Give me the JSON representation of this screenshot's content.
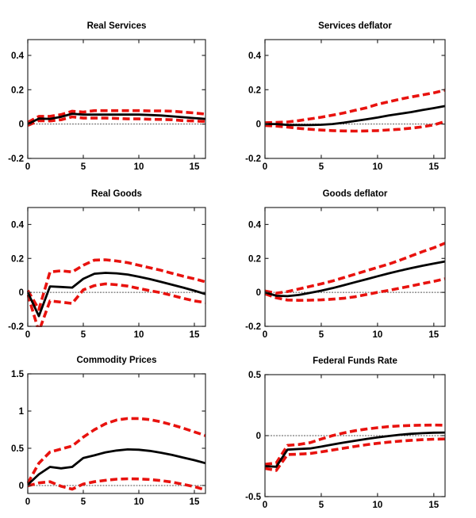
{
  "figure_caption": "",
  "colors": {
    "response_line": "#000000",
    "confidence_band": "#e8120e",
    "zero_line": "#555555",
    "axis_box": "#2b2b2b",
    "background": "#ffffff"
  },
  "chart_data": [
    {
      "type": "line",
      "title": "Real Services",
      "x": [
        0,
        1,
        2,
        3,
        4,
        5,
        6,
        7,
        8,
        9,
        10,
        11,
        12,
        13,
        14,
        15,
        16
      ],
      "xlim": [
        0,
        16
      ],
      "ylim": [
        -0.2,
        0.492
      ],
      "xticks": [
        0,
        5,
        10,
        15
      ],
      "xtick_labels": [
        "0",
        "5",
        "10",
        "15"
      ],
      "yticks": [
        -0.2,
        0,
        0.2,
        0.4
      ],
      "ytick_labels": [
        "-0.2",
        "0",
        "0.2",
        "0.4"
      ],
      "grid": false,
      "legend": "none",
      "series": [
        {
          "name": "upper_band",
          "style": "dashed",
          "values": [
            0.01,
            0.045,
            0.045,
            0.055,
            0.075,
            0.07,
            0.078,
            0.078,
            0.078,
            0.078,
            0.078,
            0.077,
            0.077,
            0.075,
            0.07,
            0.065,
            0.058
          ]
        },
        {
          "name": "lower_band",
          "style": "dashed",
          "values": [
            -0.008,
            0.02,
            0.018,
            0.025,
            0.042,
            0.035,
            0.035,
            0.035,
            0.033,
            0.03,
            0.03,
            0.028,
            0.027,
            0.025,
            0.02,
            0.018,
            0.015
          ]
        },
        {
          "name": "response",
          "style": "solid",
          "values": [
            0,
            0.032,
            0.03,
            0.042,
            0.06,
            0.055,
            0.055,
            0.055,
            0.055,
            0.055,
            0.055,
            0.053,
            0.05,
            0.045,
            0.04,
            0.035,
            0.03
          ]
        }
      ]
    },
    {
      "type": "line",
      "title": "Services deflator",
      "x": [
        0,
        1,
        2,
        3,
        4,
        5,
        6,
        7,
        8,
        9,
        10,
        11,
        12,
        13,
        14,
        15,
        16
      ],
      "xlim": [
        0,
        16
      ],
      "ylim": [
        -0.2,
        0.492
      ],
      "xticks": [
        0,
        5,
        10,
        15
      ],
      "xtick_labels": [
        "0",
        "5",
        "10",
        "15"
      ],
      "yticks": [
        -0.2,
        0,
        0.2,
        0.4
      ],
      "ytick_labels": [
        "-0.2",
        "0",
        "0.2",
        "0.4"
      ],
      "grid": false,
      "legend": "none",
      "series": [
        {
          "name": "upper_band",
          "style": "dashed",
          "values": [
            0.008,
            0.01,
            0.012,
            0.02,
            0.03,
            0.04,
            0.052,
            0.065,
            0.08,
            0.095,
            0.115,
            0.13,
            0.145,
            0.158,
            0.17,
            0.182,
            0.197
          ]
        },
        {
          "name": "lower_band",
          "style": "dashed",
          "values": [
            -0.008,
            -0.012,
            -0.018,
            -0.025,
            -0.03,
            -0.035,
            -0.038,
            -0.04,
            -0.041,
            -0.04,
            -0.038,
            -0.034,
            -0.03,
            -0.024,
            -0.016,
            -0.005,
            0.015
          ]
        },
        {
          "name": "response",
          "style": "solid",
          "values": [
            0,
            0,
            -0.005,
            -0.006,
            -0.006,
            -0.004,
            0,
            0.008,
            0.018,
            0.028,
            0.038,
            0.05,
            0.06,
            0.07,
            0.082,
            0.093,
            0.105
          ]
        }
      ]
    },
    {
      "type": "line",
      "title": "Real Goods",
      "x": [
        0,
        1,
        2,
        3,
        4,
        5,
        6,
        7,
        8,
        9,
        10,
        11,
        12,
        13,
        14,
        15,
        16
      ],
      "xlim": [
        0,
        16
      ],
      "ylim": [
        -0.2,
        0.5
      ],
      "xticks": [
        0,
        5,
        10,
        15
      ],
      "xtick_labels": [
        "0",
        "5",
        "10",
        "15"
      ],
      "yticks": [
        -0.2,
        0,
        0.2,
        0.4
      ],
      "ytick_labels": [
        "-0.2",
        "0",
        "0.2",
        "0.4"
      ],
      "grid": false,
      "legend": "none",
      "series": [
        {
          "name": "upper_band",
          "style": "dashed",
          "values": [
            0.012,
            -0.1,
            0.12,
            0.127,
            0.12,
            0.16,
            0.19,
            0.192,
            0.185,
            0.175,
            0.16,
            0.145,
            0.13,
            0.112,
            0.095,
            0.08,
            0.062
          ]
        },
        {
          "name": "lower_band",
          "style": "dashed",
          "values": [
            -0.012,
            -0.23,
            -0.05,
            -0.057,
            -0.065,
            0.015,
            0.04,
            0.05,
            0.045,
            0.037,
            0.023,
            0.01,
            -0.002,
            -0.018,
            -0.035,
            -0.05,
            -0.06
          ]
        },
        {
          "name": "response",
          "style": "solid",
          "values": [
            0,
            -0.14,
            0.035,
            0.032,
            0.028,
            0.08,
            0.11,
            0.115,
            0.112,
            0.105,
            0.092,
            0.078,
            0.062,
            0.045,
            0.028,
            0.01,
            -0.01
          ]
        }
      ]
    },
    {
      "type": "line",
      "title": "Goods deflator",
      "x": [
        0,
        1,
        2,
        3,
        4,
        5,
        6,
        7,
        8,
        9,
        10,
        11,
        12,
        13,
        14,
        15,
        16
      ],
      "xlim": [
        0,
        16
      ],
      "ylim": [
        -0.2,
        0.5
      ],
      "xticks": [
        0,
        5,
        10,
        15
      ],
      "xtick_labels": [
        "0",
        "5",
        "10",
        "15"
      ],
      "yticks": [
        -0.2,
        0,
        0.2,
        0.4
      ],
      "ytick_labels": [
        "-0.2",
        "0",
        "0.2",
        "0.4"
      ],
      "grid": false,
      "legend": "none",
      "series": [
        {
          "name": "upper_band",
          "style": "dashed",
          "values": [
            0.008,
            -0.005,
            0.005,
            0.02,
            0.035,
            0.05,
            0.067,
            0.087,
            0.107,
            0.127,
            0.147,
            0.167,
            0.19,
            0.215,
            0.24,
            0.263,
            0.29
          ]
        },
        {
          "name": "lower_band",
          "style": "dashed",
          "values": [
            -0.008,
            -0.032,
            -0.045,
            -0.047,
            -0.046,
            -0.044,
            -0.04,
            -0.035,
            -0.026,
            -0.013,
            0,
            0.012,
            0.025,
            0.038,
            0.052,
            0.065,
            0.08
          ]
        },
        {
          "name": "response",
          "style": "solid",
          "values": [
            0,
            -0.02,
            -0.022,
            -0.015,
            -0.003,
            0.01,
            0.025,
            0.042,
            0.06,
            0.077,
            0.095,
            0.112,
            0.128,
            0.143,
            0.157,
            0.17,
            0.182
          ]
        }
      ]
    },
    {
      "type": "line",
      "title": "Commodity Prices",
      "x": [
        0,
        1,
        2,
        3,
        4,
        5,
        6,
        7,
        8,
        9,
        10,
        11,
        12,
        13,
        14,
        15,
        16
      ],
      "xlim": [
        0,
        16
      ],
      "ylim": [
        -0.107,
        1.5
      ],
      "xticks": [
        0,
        5,
        10,
        15
      ],
      "xtick_labels": [
        "0",
        "5",
        "10",
        "15"
      ],
      "yticks": [
        0,
        0.5,
        1,
        1.5
      ],
      "ytick_labels": [
        "0",
        "0.5",
        "1",
        "1.5"
      ],
      "grid": false,
      "legend": "none",
      "series": [
        {
          "name": "upper_band",
          "style": "dashed",
          "values": [
            0.03,
            0.3,
            0.45,
            0.49,
            0.53,
            0.65,
            0.75,
            0.83,
            0.88,
            0.9,
            0.9,
            0.885,
            0.855,
            0.815,
            0.77,
            0.72,
            0.67
          ]
        },
        {
          "name": "lower_band",
          "style": "dashed",
          "values": [
            -0.005,
            0.035,
            0.05,
            -0.01,
            -0.05,
            0.02,
            0.05,
            0.07,
            0.085,
            0.09,
            0.088,
            0.08,
            0.065,
            0.045,
            0.015,
            -0.015,
            -0.06
          ]
        },
        {
          "name": "response",
          "style": "solid",
          "values": [
            0.01,
            0.15,
            0.25,
            0.23,
            0.25,
            0.37,
            0.405,
            0.445,
            0.47,
            0.485,
            0.48,
            0.465,
            0.44,
            0.41,
            0.375,
            0.34,
            0.3
          ]
        }
      ]
    },
    {
      "type": "line",
      "title": "Federal Funds Rate",
      "x": [
        0,
        1,
        2,
        3,
        4,
        5,
        6,
        7,
        8,
        9,
        10,
        11,
        12,
        13,
        14,
        15,
        16
      ],
      "xlim": [
        0,
        16
      ],
      "ylim": [
        -0.5,
        0.5
      ],
      "xticks": [
        0,
        5,
        10,
        15
      ],
      "xtick_labels": [
        "0",
        "5",
        "10",
        "15"
      ],
      "yticks": [
        -0.5,
        0,
        0.5
      ],
      "ytick_labels": [
        "-0.5",
        "0",
        "0.5"
      ],
      "grid": false,
      "legend": "none",
      "series": [
        {
          "name": "upper_band",
          "style": "dashed",
          "values": [
            -0.235,
            -0.225,
            -0.08,
            -0.073,
            -0.058,
            -0.028,
            0,
            0.022,
            0.04,
            0.054,
            0.065,
            0.074,
            0.08,
            0.084,
            0.086,
            0.087,
            0.085
          ]
        },
        {
          "name": "lower_band",
          "style": "dashed",
          "values": [
            -0.268,
            -0.285,
            -0.155,
            -0.152,
            -0.147,
            -0.133,
            -0.118,
            -0.103,
            -0.088,
            -0.075,
            -0.063,
            -0.053,
            -0.045,
            -0.038,
            -0.033,
            -0.029,
            -0.027
          ]
        },
        {
          "name": "response",
          "style": "solid",
          "values": [
            -0.25,
            -0.255,
            -0.115,
            -0.11,
            -0.105,
            -0.09,
            -0.073,
            -0.057,
            -0.042,
            -0.028,
            -0.015,
            -0.003,
            0.007,
            0.015,
            0.02,
            0.024,
            0.025
          ]
        }
      ]
    }
  ]
}
